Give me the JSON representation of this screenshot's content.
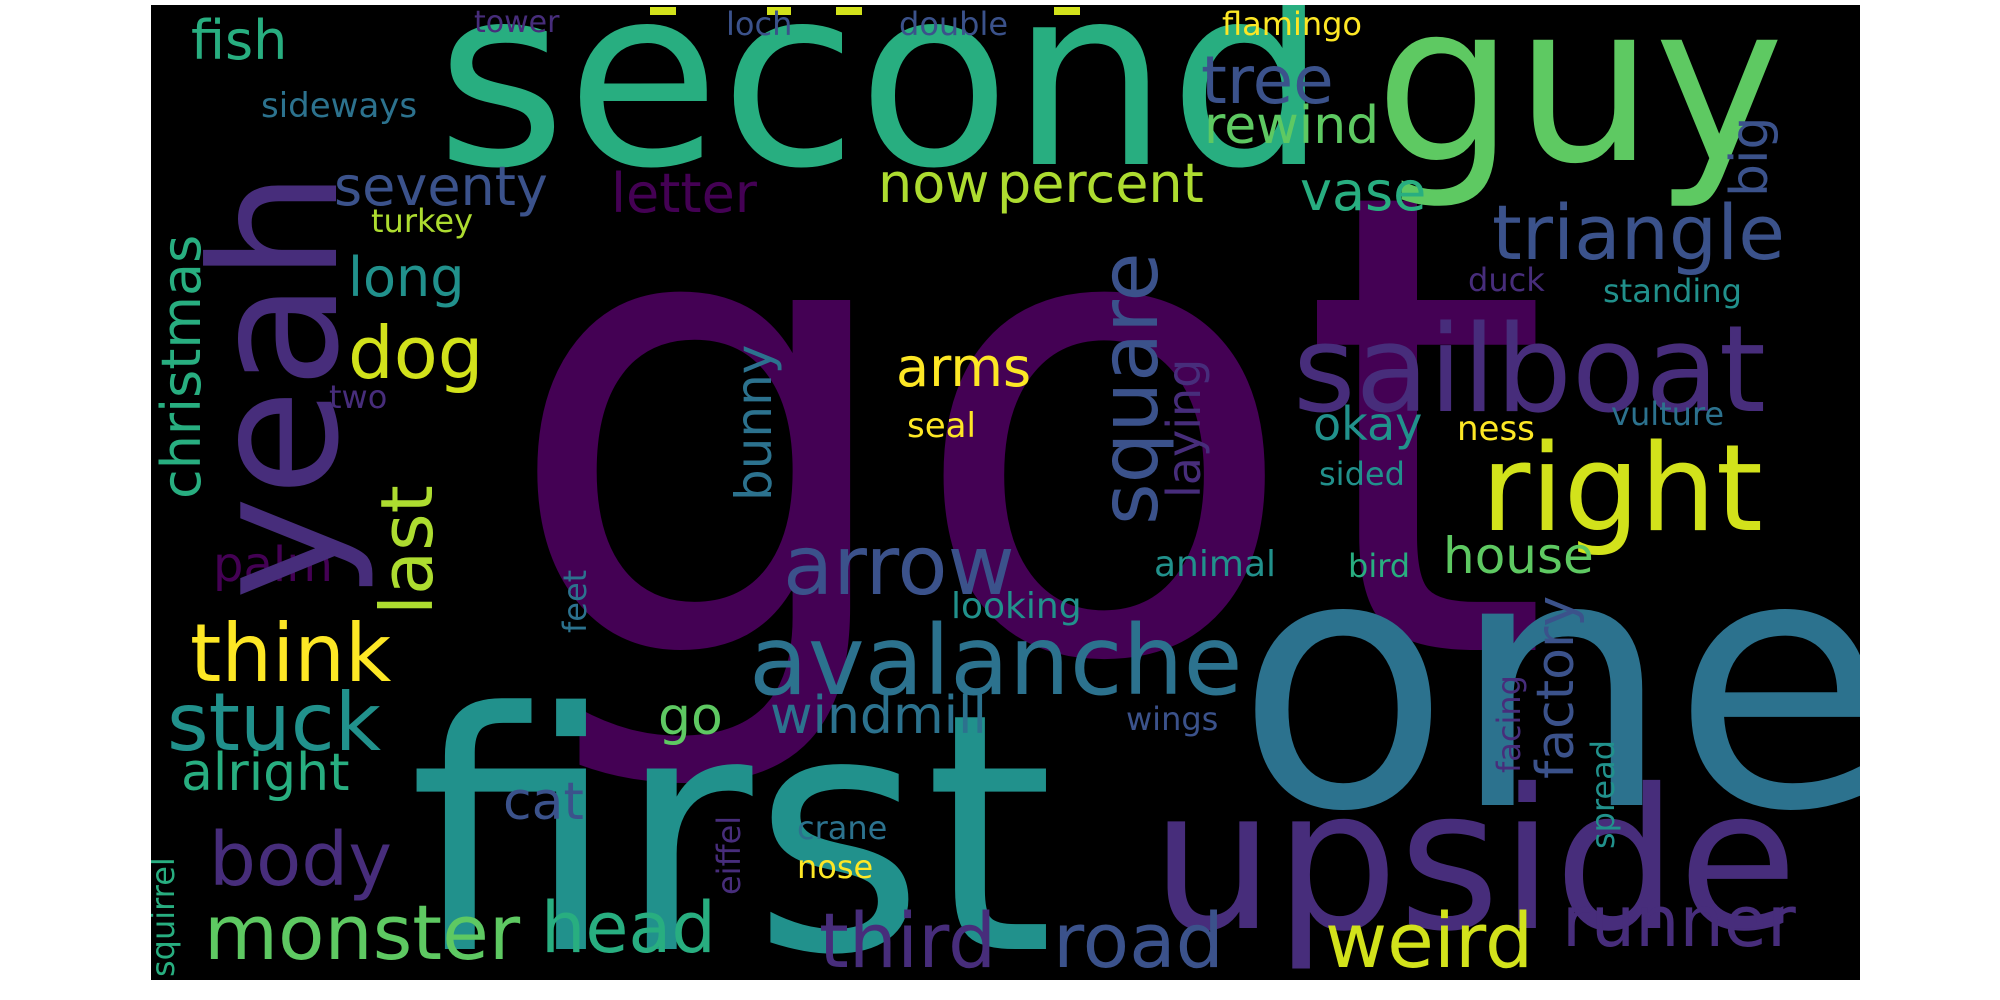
{
  "palette": {
    "background": "#000000",
    "deep_purple": "#440154",
    "purple": "#472d7b",
    "indigo": "#3b528b",
    "blue": "#2c728e",
    "teal": "#21918c",
    "green": "#28ae80",
    "light_green": "#5ec962",
    "lime": "#addc30",
    "yellow": "#fde725"
  },
  "words": [
    {
      "text": "got",
      "color": "#440154"
    },
    {
      "text": "first",
      "color": "#21918c"
    },
    {
      "text": "one",
      "color": "#2c728e"
    },
    {
      "text": "second",
      "color": "#28ae80"
    },
    {
      "text": "guy",
      "color": "#5ec962"
    },
    {
      "text": "yeah",
      "color": "#472d7b"
    },
    {
      "text": "upside",
      "color": "#472d7b"
    },
    {
      "text": "sailboat",
      "color": "#472d7b"
    },
    {
      "text": "right",
      "color": "#d2e21b"
    },
    {
      "text": "avalanche",
      "color": "#2c728e"
    },
    {
      "text": "triangle",
      "color": "#3b528b"
    },
    {
      "text": "arrow",
      "color": "#3b528b"
    },
    {
      "text": "square",
      "color": "#3b528b"
    },
    {
      "text": "think",
      "color": "#fde725"
    },
    {
      "text": "stuck",
      "color": "#21918c"
    },
    {
      "text": "monster",
      "color": "#5ec962"
    },
    {
      "text": "head",
      "color": "#28ae80"
    },
    {
      "text": "third",
      "color": "#472d7b"
    },
    {
      "text": "road",
      "color": "#3b528b"
    },
    {
      "text": "weird",
      "color": "#d2e21b"
    },
    {
      "text": "runner",
      "color": "#472d7b"
    },
    {
      "text": "body",
      "color": "#472d7b"
    },
    {
      "text": "dog",
      "color": "#d2e21b"
    },
    {
      "text": "last",
      "color": "#addc30"
    },
    {
      "text": "tree",
      "color": "#3b528b"
    },
    {
      "text": "rewind",
      "color": "#5ec962"
    },
    {
      "text": "now",
      "color": "#addc30"
    },
    {
      "text": "percent",
      "color": "#addc30"
    },
    {
      "text": "vase",
      "color": "#28ae80"
    },
    {
      "text": "big",
      "color": "#3b528b"
    },
    {
      "text": "seventy",
      "color": "#3b528b"
    },
    {
      "text": "letter",
      "color": "#440154"
    },
    {
      "text": "fish",
      "color": "#28ae80"
    },
    {
      "text": "christmas",
      "color": "#28ae80"
    },
    {
      "text": "long",
      "color": "#21918c"
    },
    {
      "text": "arms",
      "color": "#fde725"
    },
    {
      "text": "bunny",
      "color": "#2c728e"
    },
    {
      "text": "laying",
      "color": "#472d7b"
    },
    {
      "text": "okay",
      "color": "#21918c"
    },
    {
      "text": "house",
      "color": "#5ec962"
    },
    {
      "text": "factory",
      "color": "#3b528b"
    },
    {
      "text": "windmill",
      "color": "#2c728e"
    },
    {
      "text": "go",
      "color": "#5ec962"
    },
    {
      "text": "alright",
      "color": "#28ae80"
    },
    {
      "text": "cat",
      "color": "#3b528b"
    },
    {
      "text": "palm",
      "color": "#440154"
    },
    {
      "text": "tower",
      "color": "#472d7b"
    },
    {
      "text": "loch",
      "color": "#3b528b"
    },
    {
      "text": "double",
      "color": "#3b528b"
    },
    {
      "text": "flamingo",
      "color": "#fde725"
    },
    {
      "text": "sideways",
      "color": "#2c728e"
    },
    {
      "text": "turkey",
      "color": "#addc30"
    },
    {
      "text": "duck",
      "color": "#472d7b"
    },
    {
      "text": "standing",
      "color": "#21918c"
    },
    {
      "text": "two",
      "color": "#472d7b"
    },
    {
      "text": "seal",
      "color": "#fde725"
    },
    {
      "text": "ness",
      "color": "#fde725"
    },
    {
      "text": "vulture",
      "color": "#2c728e"
    },
    {
      "text": "sided",
      "color": "#21918c"
    },
    {
      "text": "animal",
      "color": "#21918c"
    },
    {
      "text": "bird",
      "color": "#28ae80"
    },
    {
      "text": "looking",
      "color": "#21918c"
    },
    {
      "text": "feet",
      "color": "#2c728e"
    },
    {
      "text": "wings",
      "color": "#3b528b"
    },
    {
      "text": "facing",
      "color": "#472d7b"
    },
    {
      "text": "spread",
      "color": "#21918c"
    },
    {
      "text": "eiffel",
      "color": "#472d7b"
    },
    {
      "text": "crane",
      "color": "#2c728e"
    },
    {
      "text": "nose",
      "color": "#fde725"
    },
    {
      "text": "squirrel",
      "color": "#28ae80"
    }
  ]
}
